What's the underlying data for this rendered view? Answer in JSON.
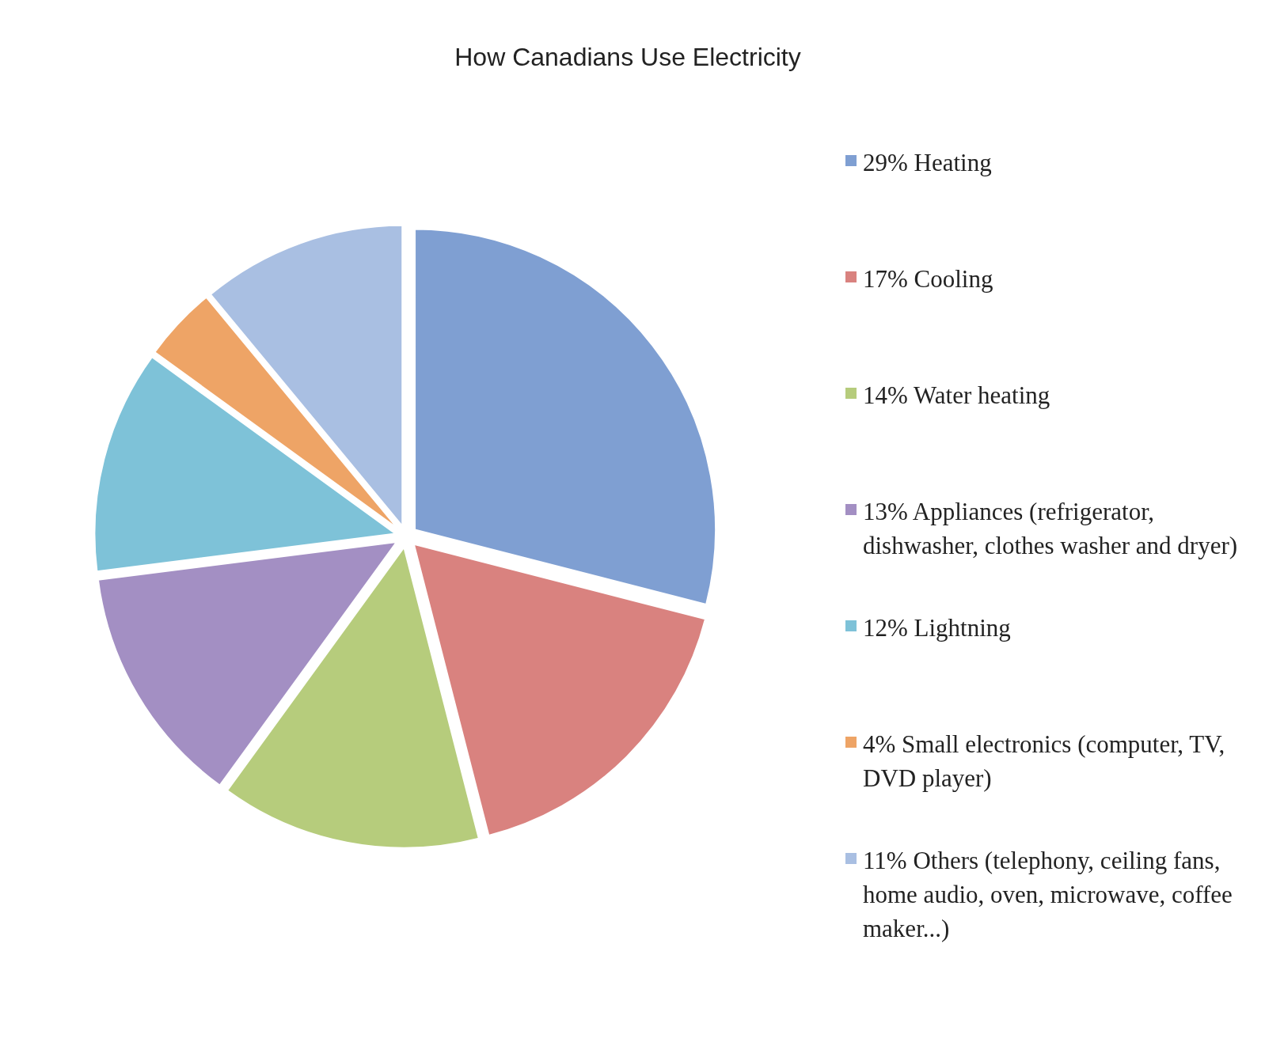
{
  "chart_data": {
    "type": "pie",
    "title": "How Canadians Use Electricity",
    "categories": [
      "29% Heating",
      "17% Cooling",
      "14% Water heating",
      "13% Appliances (refrigerator, dishwasher, clothes washer and dryer)",
      "12% Lightning",
      "4% Small electronics (computer, TV, DVD player)",
      "11% Others (telephony, ceiling fans, home audio, oven, microwave, coffee maker...)"
    ],
    "values": [
      29,
      17,
      14,
      13,
      12,
      4,
      11
    ],
    "colors": [
      "#7f9fd2",
      "#d9827f",
      "#b6cc7c",
      "#a38fc3",
      "#7ec2d8",
      "#eea466",
      "#a9bfe2"
    ],
    "legend": "right"
  }
}
